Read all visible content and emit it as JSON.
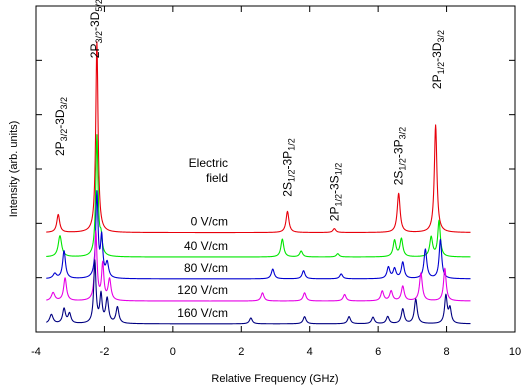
{
  "chart_data": {
    "type": "line",
    "title": "",
    "xlabel": "Relative Frequency (GHz)",
    "ylabel": "Intensity (arb. units)",
    "xlim": [
      -4,
      10
    ],
    "ylim": [
      0,
      1
    ],
    "x_ticks": [
      -4,
      -2,
      0,
      2,
      4,
      6,
      8,
      10
    ],
    "y_ticks": [],
    "grid": false,
    "legend": "none",
    "legend_header": [
      "Electric",
      "field"
    ],
    "series": [
      {
        "name": "0 V/cm",
        "color": "#e8000b",
        "baseline": 0.305,
        "peaks": [
          {
            "x": -3.35,
            "h": 0.055,
            "w": 0.05
          },
          {
            "x": -2.22,
            "h": 0.585,
            "w": 0.04
          },
          {
            "x": 3.35,
            "h": 0.065,
            "w": 0.05
          },
          {
            "x": 4.72,
            "h": 0.012,
            "w": 0.05
          },
          {
            "x": 6.6,
            "h": 0.12,
            "w": 0.05
          },
          {
            "x": 7.68,
            "h": 0.33,
            "w": 0.045
          }
        ]
      },
      {
        "name": "40 V/cm",
        "color": "#00e600",
        "baseline": 0.23,
        "peaks": [
          {
            "x": -3.3,
            "h": 0.065,
            "w": 0.06
          },
          {
            "x": -2.22,
            "h": 0.37,
            "w": 0.04
          },
          {
            "x": -2.1,
            "h": 0.05,
            "w": 0.04
          },
          {
            "x": 3.2,
            "h": 0.055,
            "w": 0.05
          },
          {
            "x": 3.75,
            "h": 0.018,
            "w": 0.05
          },
          {
            "x": 4.82,
            "h": 0.01,
            "w": 0.05
          },
          {
            "x": 6.48,
            "h": 0.05,
            "w": 0.05
          },
          {
            "x": 6.68,
            "h": 0.055,
            "w": 0.05
          },
          {
            "x": 7.55,
            "h": 0.06,
            "w": 0.05
          },
          {
            "x": 7.78,
            "h": 0.11,
            "w": 0.045
          }
        ]
      },
      {
        "name": "80 V/cm",
        "color": "#0000d0",
        "baseline": 0.163,
        "peaks": [
          {
            "x": -3.45,
            "h": 0.015,
            "w": 0.06
          },
          {
            "x": -3.18,
            "h": 0.085,
            "w": 0.05
          },
          {
            "x": -2.22,
            "h": 0.26,
            "w": 0.04
          },
          {
            "x": -2.08,
            "h": 0.12,
            "w": 0.04
          },
          {
            "x": -1.92,
            "h": 0.045,
            "w": 0.05
          },
          {
            "x": 2.92,
            "h": 0.03,
            "w": 0.05
          },
          {
            "x": 3.82,
            "h": 0.025,
            "w": 0.05
          },
          {
            "x": 4.92,
            "h": 0.015,
            "w": 0.05
          },
          {
            "x": 6.3,
            "h": 0.035,
            "w": 0.05
          },
          {
            "x": 6.48,
            "h": 0.03,
            "w": 0.05
          },
          {
            "x": 6.72,
            "h": 0.05,
            "w": 0.05
          },
          {
            "x": 7.38,
            "h": 0.09,
            "w": 0.05
          },
          {
            "x": 7.82,
            "h": 0.12,
            "w": 0.045
          }
        ]
      },
      {
        "name": "120 V/cm",
        "color": "#e600e6",
        "baseline": 0.095,
        "peaks": [
          {
            "x": -3.5,
            "h": 0.025,
            "w": 0.06
          },
          {
            "x": -3.15,
            "h": 0.07,
            "w": 0.05
          },
          {
            "x": -2.25,
            "h": 0.21,
            "w": 0.04
          },
          {
            "x": -2.05,
            "h": 0.11,
            "w": 0.04
          },
          {
            "x": -1.85,
            "h": 0.065,
            "w": 0.05
          },
          {
            "x": 2.62,
            "h": 0.025,
            "w": 0.05
          },
          {
            "x": 3.85,
            "h": 0.025,
            "w": 0.05
          },
          {
            "x": 5.02,
            "h": 0.02,
            "w": 0.05
          },
          {
            "x": 6.12,
            "h": 0.03,
            "w": 0.05
          },
          {
            "x": 6.38,
            "h": 0.03,
            "w": 0.05
          },
          {
            "x": 6.72,
            "h": 0.045,
            "w": 0.05
          },
          {
            "x": 7.25,
            "h": 0.085,
            "w": 0.05
          },
          {
            "x": 7.95,
            "h": 0.1,
            "w": 0.045
          }
        ]
      },
      {
        "name": "160 V/cm",
        "color": "#000080",
        "baseline": 0.025,
        "peaks": [
          {
            "x": -3.55,
            "h": 0.028,
            "w": 0.06
          },
          {
            "x": -3.18,
            "h": 0.045,
            "w": 0.05
          },
          {
            "x": -3.02,
            "h": 0.03,
            "w": 0.05
          },
          {
            "x": -2.28,
            "h": 0.19,
            "w": 0.04
          },
          {
            "x": -2.1,
            "h": 0.085,
            "w": 0.04
          },
          {
            "x": -1.92,
            "h": 0.075,
            "w": 0.05
          },
          {
            "x": -1.62,
            "h": 0.05,
            "w": 0.05
          },
          {
            "x": 2.28,
            "h": 0.018,
            "w": 0.05
          },
          {
            "x": 3.85,
            "h": 0.022,
            "w": 0.05
          },
          {
            "x": 5.15,
            "h": 0.022,
            "w": 0.05
          },
          {
            "x": 5.85,
            "h": 0.02,
            "w": 0.05
          },
          {
            "x": 6.28,
            "h": 0.022,
            "w": 0.05
          },
          {
            "x": 6.72,
            "h": 0.045,
            "w": 0.05
          },
          {
            "x": 7.1,
            "h": 0.075,
            "w": 0.05
          },
          {
            "x": 7.98,
            "h": 0.085,
            "w": 0.045
          },
          {
            "x": 8.1,
            "h": 0.045,
            "w": 0.045
          }
        ]
      }
    ],
    "annotations": [
      {
        "id": "2P32-3D32",
        "x": -3.3,
        "y": 0.54,
        "parts": [
          [
            "2P",
            ""
          ],
          [
            "3/2",
            "sub"
          ],
          [
            "-3D",
            ""
          ],
          [
            "3/2",
            "sub"
          ]
        ]
      },
      {
        "id": "2P32-3D52",
        "x": -2.27,
        "y": 0.84,
        "parts": [
          [
            "2P",
            ""
          ],
          [
            "3/2",
            "sub"
          ],
          [
            "-3D",
            ""
          ],
          [
            "5/2",
            "sub"
          ]
        ]
      },
      {
        "id": "2S12-3P12",
        "x": 3.35,
        "y": 0.415,
        "parts": [
          [
            "2S",
            ""
          ],
          [
            "1/2",
            "sub"
          ],
          [
            "-3P",
            ""
          ],
          [
            "1/2",
            "sub"
          ]
        ]
      },
      {
        "id": "2P12-3S12",
        "x": 4.72,
        "y": 0.34,
        "parts": [
          [
            "2P",
            ""
          ],
          [
            "1/2",
            "sub"
          ],
          [
            "-3S",
            ""
          ],
          [
            "1/2",
            "sub"
          ]
        ]
      },
      {
        "id": "2S12-3P32",
        "x": 6.6,
        "y": 0.45,
        "parts": [
          [
            "2S",
            ""
          ],
          [
            "1/2",
            "sub"
          ],
          [
            "-3P",
            ""
          ],
          [
            "3/2",
            "sub"
          ]
        ]
      },
      {
        "id": "2P12-3D32",
        "x": 7.72,
        "y": 0.745,
        "parts": [
          [
            "2P",
            ""
          ],
          [
            "1/2",
            "sub"
          ],
          [
            "-3D",
            ""
          ],
          [
            "3/2",
            "sub"
          ]
        ]
      }
    ]
  }
}
